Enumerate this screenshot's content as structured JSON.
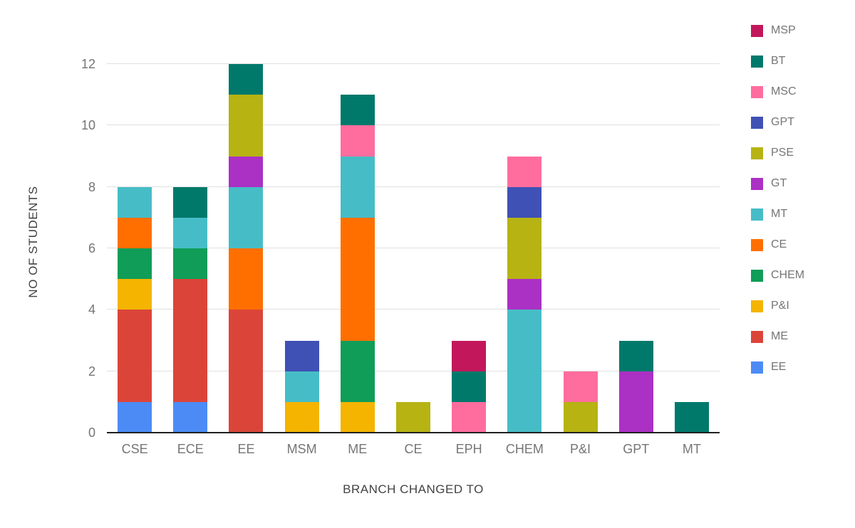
{
  "chart_data": {
    "type": "bar",
    "stacked": true,
    "title": "",
    "xlabel": "BRANCH CHANGED TO",
    "ylabel": "NO OF STUDENTS",
    "ylim": [
      0,
      12
    ],
    "yticks": [
      0,
      2,
      4,
      6,
      8,
      10,
      12
    ],
    "grid": true,
    "legend_position": "right",
    "categories": [
      "CSE",
      "ECE",
      "EE",
      "MSM",
      "ME",
      "CE",
      "EPH",
      "CHEM",
      "P&I",
      "GPT",
      "MT"
    ],
    "series": [
      {
        "name": "EE",
        "color": "#4c8bf5",
        "values": [
          1,
          1,
          0,
          0,
          0,
          0,
          0,
          0,
          0,
          0,
          0
        ]
      },
      {
        "name": "ME",
        "color": "#db4539",
        "values": [
          3,
          4,
          4,
          0,
          0,
          0,
          0,
          0,
          0,
          0,
          0
        ]
      },
      {
        "name": "P&I",
        "color": "#f4b400",
        "values": [
          1,
          0,
          0,
          1,
          1,
          0,
          0,
          0,
          0,
          0,
          0
        ]
      },
      {
        "name": "CHEM",
        "color": "#0f9d58",
        "values": [
          1,
          1,
          0,
          0,
          2,
          0,
          0,
          0,
          0,
          0,
          0
        ]
      },
      {
        "name": "CE",
        "color": "#ff6f00",
        "values": [
          1,
          0,
          2,
          0,
          4,
          0,
          0,
          0,
          0,
          0,
          0
        ]
      },
      {
        "name": "MT",
        "color": "#46bdc6",
        "values": [
          1,
          1,
          2,
          1,
          2,
          0,
          0,
          4,
          0,
          0,
          0
        ]
      },
      {
        "name": "GT",
        "color": "#ab30c4",
        "values": [
          0,
          0,
          1,
          0,
          0,
          0,
          0,
          1,
          0,
          2,
          0
        ]
      },
      {
        "name": "PSE",
        "color": "#b6b313",
        "values": [
          0,
          0,
          2,
          0,
          0,
          1,
          0,
          2,
          1,
          0,
          0
        ]
      },
      {
        "name": "GPT",
        "color": "#3f51b5",
        "values": [
          0,
          0,
          0,
          1,
          0,
          0,
          0,
          1,
          0,
          0,
          0
        ]
      },
      {
        "name": "MSC",
        "color": "#ff6d9e",
        "values": [
          0,
          0,
          0,
          0,
          1,
          0,
          1,
          1,
          1,
          0,
          0
        ]
      },
      {
        "name": "BT",
        "color": "#00796b",
        "values": [
          0,
          1,
          1,
          0,
          1,
          0,
          1,
          0,
          0,
          1,
          1
        ]
      },
      {
        "name": "MSP",
        "color": "#c2185b",
        "values": [
          0,
          0,
          0,
          0,
          0,
          0,
          1,
          0,
          0,
          0,
          0
        ]
      }
    ],
    "legend": [
      "MSP",
      "BT",
      "MSC",
      "GPT",
      "PSE",
      "GT",
      "MT",
      "CE",
      "CHEM",
      "P&I",
      "ME",
      "EE"
    ],
    "style": {
      "grid_color": "#e0e0e0",
      "baseline_color": "#212121",
      "tick_text_color": "#757575",
      "axis_title_color": "#424242",
      "background": "#ffffff"
    }
  }
}
